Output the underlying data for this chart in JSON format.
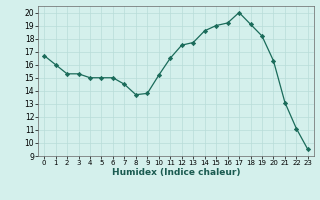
{
  "x": [
    0,
    1,
    2,
    3,
    4,
    5,
    6,
    7,
    8,
    9,
    10,
    11,
    12,
    13,
    14,
    15,
    16,
    17,
    18,
    19,
    20,
    21,
    22,
    23
  ],
  "y": [
    16.7,
    16.0,
    15.3,
    15.3,
    15.0,
    15.0,
    15.0,
    14.5,
    13.7,
    13.8,
    15.2,
    16.5,
    17.5,
    17.7,
    18.6,
    19.0,
    19.2,
    20.0,
    19.1,
    18.2,
    16.3,
    13.1,
    11.1,
    9.5
  ],
  "xlabel": "Humidex (Indice chaleur)",
  "xlim": [
    -0.5,
    23.5
  ],
  "ylim": [
    9,
    20.5
  ],
  "yticks": [
    9,
    10,
    11,
    12,
    13,
    14,
    15,
    16,
    17,
    18,
    19,
    20
  ],
  "xticks": [
    0,
    1,
    2,
    3,
    4,
    5,
    6,
    7,
    8,
    9,
    10,
    11,
    12,
    13,
    14,
    15,
    16,
    17,
    18,
    19,
    20,
    21,
    22,
    23
  ],
  "line_color": "#1a6b5a",
  "marker_color": "#1a6b5a",
  "bg_color": "#d4f0ec",
  "grid_color": "#b8ddd8",
  "grid_color_major": "#c8c8c8"
}
